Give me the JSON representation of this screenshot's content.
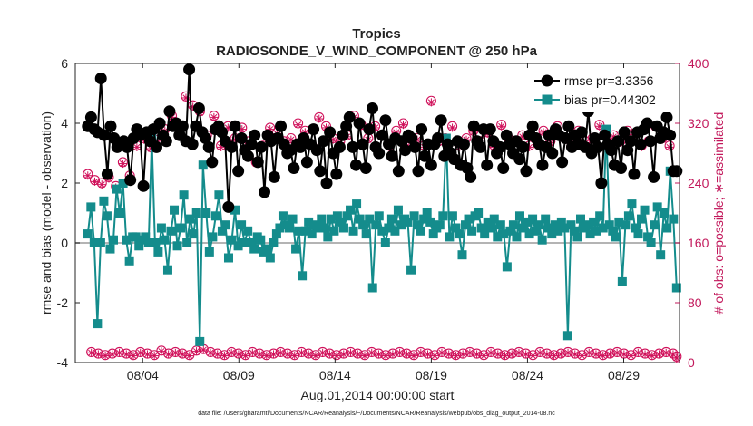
{
  "chart_data": {
    "type": "line",
    "title": "Tropics",
    "subtitle": "RADIOSONDE_V_WIND_COMPONENT @ 250 hPa",
    "xlabel": "Aug.01,2014 00:00:00 start",
    "ylabel": "rmse and bias (model - observation)",
    "y2label": "# of obs: o=possible; ∗=assimilated",
    "footnote": "data file: /Users/gharamti/Documents/NCAR/Reanalysis/~/Documents/NCAR/Reanalysis/webpub/obs_diag_output_2014-08.nc",
    "xlim": [
      0.5,
      31.9
    ],
    "ylim": [
      -4,
      6
    ],
    "y2lim": [
      0,
      400
    ],
    "x_ticks": [
      {
        "value": 4,
        "label": "08/04"
      },
      {
        "value": 9,
        "label": "08/09"
      },
      {
        "value": 14,
        "label": "08/14"
      },
      {
        "value": 19,
        "label": "08/19"
      },
      {
        "value": 24,
        "label": "08/24"
      },
      {
        "value": 29,
        "label": "08/29"
      }
    ],
    "y_ticks": [
      -4,
      -2,
      0,
      2,
      4,
      6
    ],
    "y2_ticks": [
      0,
      80,
      160,
      240,
      320,
      400
    ],
    "zero_line": 0,
    "colors": {
      "rmse": "#000000",
      "bias": "#148c8c",
      "obs": "#d0105a",
      "zero": "#b4b4b4",
      "right_axis": "#c2185b"
    },
    "series": [
      {
        "name": "rmse pr=3.3356",
        "axis": "left",
        "marker": "circle",
        "values": [
          3.9,
          4.2,
          3.8,
          3.7,
          5.5,
          3.6,
          2.3,
          3.9,
          3.5,
          3.2,
          3.3,
          3.4,
          3.2,
          2.1,
          3.5,
          3.8,
          3.6,
          1.9,
          3.7,
          3.4,
          3.8,
          3.2,
          4.0,
          3.6,
          3.4,
          4.4,
          3.9,
          4.0,
          3.6,
          3.9,
          3.4,
          5.8,
          3.3,
          3.9,
          4.5,
          3.7,
          3.5,
          3.2,
          2.7,
          3.8,
          3.9,
          3.7,
          3.4,
          1.2,
          3.2,
          3.9,
          2.4,
          3.5,
          3.1,
          2.9,
          3.3,
          3.6,
          2.7,
          3.2,
          1.7,
          3.6,
          3.4,
          2.2,
          3.5,
          3.9,
          3.3,
          3.0,
          3.1,
          2.5,
          3.3,
          3.2,
          3.5,
          2.7,
          3.3,
          3.8,
          3.1,
          2.4,
          3.4,
          2.0,
          3.7,
          3.0,
          2.3,
          3.2,
          3.6,
          3.9,
          4.2,
          3.2,
          2.6,
          4.0,
          3.3,
          2.5,
          3.8,
          4.5,
          3.2,
          3.0,
          3.6,
          4.1,
          3.3,
          2.9,
          3.5,
          2.4,
          3.4,
          3.1,
          3.6,
          3.5,
          3.2,
          2.4,
          3.8,
          2.9,
          3.3,
          2.6,
          3.3,
          3.5,
          4.1,
          2.9,
          3.3,
          3.0,
          2.8,
          3.4,
          2.6,
          3.3,
          2.5,
          2.2,
          3.9,
          3.4,
          3.2,
          3.8,
          2.6,
          3.8,
          3.4,
          3.0,
          3.2,
          2.5,
          3.6,
          3.3,
          3.0,
          3.4,
          2.8,
          3.2,
          2.4,
          3.6,
          3.9,
          3.5,
          3.3,
          2.6,
          3.2,
          3.6,
          3.0,
          3.8,
          3.6,
          2.7,
          3.5,
          3.9,
          3.2,
          3.6,
          3.3,
          3.7,
          3.2,
          4.4,
          3.0,
          3.5,
          3.2,
          2.0,
          3.6,
          3.3,
          3.1,
          2.6,
          3.4,
          2.5,
          3.7,
          3.1,
          3.4,
          2.3,
          3.7,
          3.3,
          3.8,
          4.0,
          3.4,
          2.2,
          3.9,
          3.5,
          3.7,
          4.2,
          3.6,
          2.4,
          2.4
        ]
      },
      {
        "name": "bias pr=0.44302",
        "axis": "left",
        "marker": "square",
        "values": [
          0.3,
          1.2,
          0.0,
          -2.7,
          0.0,
          1.4,
          0.9,
          -0.2,
          0.1,
          1.8,
          1.0,
          2.0,
          0.1,
          -0.6,
          0.2,
          0.2,
          -0.1,
          0.1,
          0.2,
          0.0,
          3.5,
          0.0,
          -0.3,
          0.5,
          0.1,
          -0.9,
          0.4,
          1.1,
          -0.1,
          0.5,
          1.6,
          0.0,
          0.8,
          0.3,
          1.0,
          -3.3,
          2.6,
          1.0,
          -0.3,
          0.2,
          0.9,
          1.6,
          0.4,
          0.6,
          -0.5,
          0.1,
          1.1,
          -0.1,
          0.6,
          0.0,
          0.4,
          0.0,
          -0.2,
          0.2,
          0.1,
          -0.3,
          -0.2,
          -0.5,
          0.0,
          0.3,
          0.5,
          0.9,
          0.6,
          0.5,
          0.8,
          -0.2,
          0.4,
          -1.1,
          0.4,
          0.7,
          0.3,
          0.6,
          0.5,
          0.8,
          0.5,
          0.2,
          0.8,
          0.4,
          0.9,
          0.7,
          0.5,
          0.9,
          1.1,
          0.4,
          1.3,
          0.8,
          0.6,
          0.3,
          0.8,
          -1.5,
          0.6,
          0.9,
          0.4,
          0.0,
          0.5,
          0.8,
          0.4,
          1.1,
          0.6,
          0.8,
          0.7,
          -0.9,
          0.9,
          0.6,
          0.4,
          0.8,
          1.0,
          0.7,
          0.3,
          0.5,
          0.6,
          0.9,
          3.5,
          0.2,
          0.9,
          0.5,
          0.3,
          -0.4,
          0.6,
          0.8,
          0.4,
          0.9,
          1.0,
          0.5,
          0.3,
          0.7,
          0.5,
          0.8,
          0.2,
          0.6,
          0.3,
          -0.8,
          0.4,
          0.6,
          0.2,
          0.9,
          0.5,
          0.7,
          0.3,
          0.8,
          0.4,
          0.6,
          0.1,
          0.8,
          0.5,
          0.3,
          0.6,
          0.4,
          0.7,
          0.5,
          -3.1,
          0.6,
          0.4,
          0.2,
          0.8,
          0.5,
          0.6,
          0.3,
          0.7,
          0.4,
          0.9,
          0.5,
          3.8,
          0.6,
          0.4,
          0.2,
          0.7,
          -1.3,
          0.6,
          0.9,
          1.3,
          0.5,
          0.3,
          0.8,
          1.1,
          0.2,
          0.0,
          0.6,
          1.2,
          -0.4,
          1.0,
          0.5,
          2.4,
          0.8,
          -1.5
        ]
      },
      {
        "name": "possible",
        "axis": "right",
        "marker": "circle-open",
        "values": [
          252,
          14,
          244,
          12,
          240,
          10,
          248,
          12,
          236,
          14,
          268,
          12,
          250,
          10,
          290,
          14,
          300,
          12,
          288,
          10,
          298,
          16,
          312,
          12,
          330,
          14,
          314,
          12,
          356,
          10,
          344,
          16,
          336,
          18,
          304,
          14,
          330,
          12,
          290,
          10,
          316,
          14,
          300,
          12,
          314,
          10,
          296,
          14,
          268,
          12,
          290,
          10,
          314,
          12,
          308,
          14,
          296,
          12,
          300,
          10,
          320,
          14,
          310,
          12,
          290,
          10,
          328,
          14,
          316,
          12,
          300,
          10,
          296,
          12,
          304,
          14,
          330,
          12,
          318,
          10,
          300,
          14,
          316,
          12,
          304,
          10,
          290,
          12,
          310,
          14,
          320,
          12,
          296,
          10,
          300,
          14,
          290,
          12,
          350,
          10,
          296,
          14,
          300,
          12,
          316,
          10,
          290,
          12,
          300,
          14,
          310,
          12,
          296,
          10,
          308,
          14,
          290,
          12,
          318,
          10,
          300,
          12,
          296,
          14,
          304,
          12,
          290,
          10,
          300,
          14,
          310,
          12,
          296,
          10,
          316,
          12,
          300,
          14,
          290,
          12,
          310,
          10,
          296,
          14,
          300,
          12,
          318,
          10,
          290,
          12,
          304,
          14,
          296,
          12,
          310,
          10,
          300,
          14,
          290,
          12,
          296,
          10,
          316,
          12,
          300,
          14,
          290,
          12,
          8
        ]
      },
      {
        "name": "assimilated",
        "axis": "right",
        "marker": "asterisk",
        "values": [
          250,
          13,
          242,
          11,
          238,
          9,
          246,
          11,
          234,
          13,
          266,
          11,
          248,
          9,
          288,
          13,
          298,
          11,
          286,
          9,
          296,
          15,
          310,
          11,
          328,
          13,
          312,
          11,
          354,
          9,
          342,
          15,
          334,
          17,
          302,
          13,
          328,
          11,
          288,
          9,
          314,
          13,
          298,
          11,
          312,
          9,
          294,
          13,
          266,
          11,
          288,
          9,
          312,
          11,
          306,
          13,
          294,
          11,
          298,
          9,
          318,
          13,
          308,
          11,
          288,
          9,
          326,
          13,
          314,
          11,
          298,
          9,
          294,
          11,
          302,
          13,
          328,
          11,
          316,
          9,
          298,
          13,
          314,
          11,
          302,
          9,
          288,
          11,
          308,
          13,
          318,
          11,
          294,
          9,
          298,
          13,
          288,
          11,
          348,
          9,
          294,
          13,
          298,
          11,
          314,
          9,
          288,
          11,
          298,
          13,
          308,
          11,
          294,
          9,
          306,
          13,
          288,
          11,
          316,
          9,
          298,
          11,
          294,
          13,
          302,
          11,
          288,
          9,
          298,
          13,
          308,
          11,
          294,
          9,
          314,
          11,
          298,
          13,
          288,
          11,
          308,
          9,
          294,
          13,
          298,
          11,
          316,
          9,
          288,
          11,
          302,
          13,
          294,
          11,
          308,
          9,
          298,
          13,
          288,
          11,
          294,
          9,
          314,
          11,
          298,
          13,
          288,
          11,
          6
        ]
      }
    ]
  }
}
